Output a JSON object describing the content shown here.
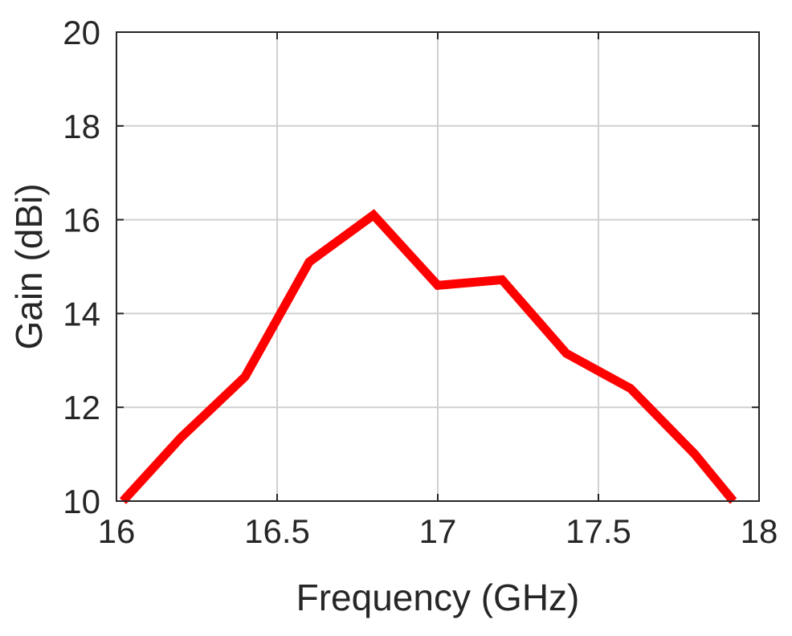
{
  "chart_data": {
    "type": "line",
    "title": "",
    "xlabel": "Frequency (GHz)",
    "ylabel": "Gain (dBi)",
    "xlim": [
      16,
      18
    ],
    "ylim": [
      10,
      20
    ],
    "x_ticks": [
      16,
      16.5,
      17,
      17.5,
      18
    ],
    "x_tick_labels": [
      "16",
      "16.5",
      "17",
      "17.5",
      "18"
    ],
    "y_ticks": [
      10,
      12,
      14,
      16,
      18,
      20
    ],
    "y_tick_labels": [
      "10",
      "12",
      "14",
      "16",
      "18",
      "20"
    ],
    "grid": true,
    "series": [
      {
        "color": "#ff0000",
        "x": [
          16.02,
          16.2,
          16.4,
          16.6,
          16.8,
          17.0,
          17.2,
          17.4,
          17.6,
          17.8,
          17.92
        ],
        "y": [
          10.0,
          11.35,
          12.65,
          15.1,
          16.1,
          14.6,
          14.72,
          13.15,
          12.4,
          11.0,
          10.0
        ]
      }
    ]
  }
}
